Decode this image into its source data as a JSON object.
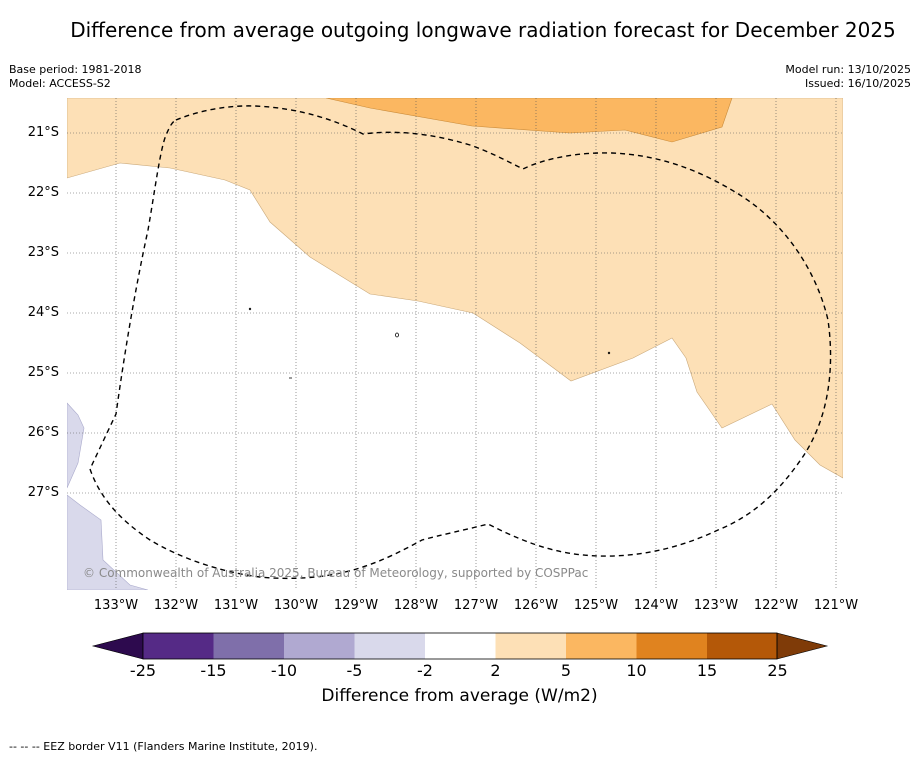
{
  "title": "Difference from average outgoing longwave radiation forecast for December 2025",
  "meta": {
    "base_period": "Base period: 1981-2018",
    "model": "Model: ACCESS-S2",
    "model_run": "Model run: 13/10/2025",
    "issued": "Issued: 16/10/2025"
  },
  "map": {
    "latitudes": [
      "21°S",
      "22°S",
      "23°S",
      "24°S",
      "25°S",
      "26°S",
      "27°S"
    ],
    "longitudes": [
      "133°W",
      "132°W",
      "131°W",
      "130°W",
      "129°W",
      "128°W",
      "127°W",
      "126°W",
      "125°W",
      "124°W",
      "123°W",
      "122°W",
      "121°W"
    ],
    "attribution": "© Commonwealth of Australia 2025, Bureau of Meteorology, supported by COSPPac"
  },
  "colorbar": {
    "label": "Difference from average (W/m2)",
    "ticks": [
      "-25",
      "-15",
      "-10",
      "-5",
      "-2",
      "2",
      "5",
      "10",
      "15",
      "25"
    ],
    "colors": [
      "#552a86",
      "#7f6faa",
      "#b0a9d1",
      "#d9d9eb",
      "#ffffff",
      "#fde0b6",
      "#fbb761",
      "#e0831f",
      "#b45808"
    ],
    "under_color": "#2d0a4e",
    "over_color": "#7f3b08"
  },
  "footer": "--  --  -- EEZ border V11 (Flanders Marine Institute, 2019)."
}
